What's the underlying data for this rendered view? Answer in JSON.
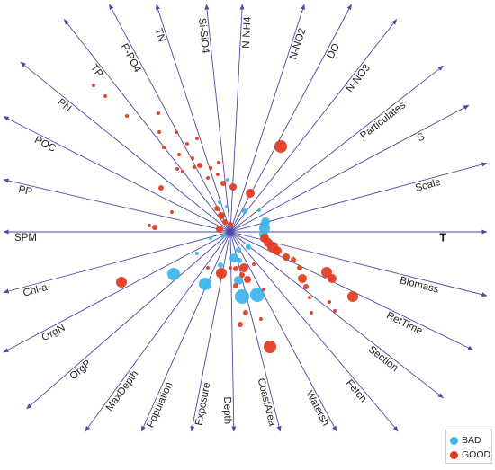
{
  "chart_data": {
    "type": "scatter",
    "variant": "biplot-vectors",
    "title": "",
    "grid": false,
    "legend_placement": "bottom-right",
    "colors": {
      "axis": "#4a4aa8",
      "BAD": "#3fb6ea",
      "GOOD": "#e23d22"
    },
    "axes": [
      {
        "label": "T",
        "angle": 0,
        "bold": true
      },
      {
        "label": "Scale",
        "angle": 15
      },
      {
        "label": "S",
        "angle": 28
      },
      {
        "label": "Particulates",
        "angle": 38
      },
      {
        "label": "N-NO3",
        "angle": 52
      },
      {
        "label": "DO",
        "angle": 62
      },
      {
        "label": "N-NO2",
        "angle": 72
      },
      {
        "label": "N-NH4",
        "angle": 87
      },
      {
        "label": "Si-SiO4",
        "angle": 96
      },
      {
        "label": "TN",
        "angle": 108
      },
      {
        "label": "P-PO4",
        "angle": 118
      },
      {
        "label": "TP",
        "angle": 128
      },
      {
        "label": "PN",
        "angle": 141
      },
      {
        "label": "POC",
        "angle": 153
      },
      {
        "label": "PP",
        "angle": 167
      },
      {
        "label": "SPM",
        "angle": 180
      },
      {
        "label": "Chl-a",
        "angle": 195
      },
      {
        "label": "OrgN",
        "angle": 208
      },
      {
        "label": "OrgP",
        "angle": 221
      },
      {
        "label": "MaxDepth",
        "angle": 234
      },
      {
        "label": "Population",
        "angle": 246
      },
      {
        "label": "Exposure",
        "angle": 259
      },
      {
        "label": "Depth",
        "angle": 271
      },
      {
        "label": "CoastArea",
        "angle": 284
      },
      {
        "label": "Watersh",
        "angle": 298
      },
      {
        "label": "Fetch",
        "angle": 310
      },
      {
        "label": "Section",
        "angle": 322
      },
      {
        "label": "RetTime",
        "angle": 334
      },
      {
        "label": "Biomass",
        "angle": 346
      }
    ],
    "series": [
      {
        "name": "BAD",
        "points": [
          {
            "x": -3,
            "y": 58,
            "s": 2
          },
          {
            "x": -12,
            "y": 33,
            "s": 2
          },
          {
            "x": -4,
            "y": 28,
            "s": 2
          },
          {
            "x": 16,
            "y": 23,
            "s": 3
          },
          {
            "x": 32,
            "y": 24,
            "s": 2
          },
          {
            "x": 39,
            "y": 11,
            "s": 5
          },
          {
            "x": 38,
            "y": 4,
            "s": 6
          },
          {
            "x": 37,
            "y": -3,
            "s": 5
          },
          {
            "x": -8,
            "y": -5,
            "s": 2
          },
          {
            "x": -22,
            "y": -7,
            "s": 2
          },
          {
            "x": -37,
            "y": -24,
            "s": 2
          },
          {
            "x": 9,
            "y": -20,
            "s": 3
          },
          {
            "x": 20,
            "y": -17,
            "s": 3
          },
          {
            "x": 4,
            "y": -29,
            "s": 5
          },
          {
            "x": 10,
            "y": -32,
            "s": 3
          },
          {
            "x": -11,
            "y": -37,
            "s": 3
          },
          {
            "x": -63,
            "y": -47,
            "s": 7
          },
          {
            "x": -28,
            "y": -58,
            "s": 7
          },
          {
            "x": 9,
            "y": -54,
            "s": 5
          },
          {
            "x": 13,
            "y": -72,
            "s": 8
          },
          {
            "x": 30,
            "y": -70,
            "s": 8
          }
        ]
      },
      {
        "name": "GOOD",
        "points": [
          {
            "x": -152,
            "y": 163,
            "s": 2
          },
          {
            "x": -139,
            "y": 151,
            "s": 2
          },
          {
            "x": -115,
            "y": 129,
            "s": 2
          },
          {
            "x": -80,
            "y": 132,
            "s": 2
          },
          {
            "x": -79,
            "y": 111,
            "s": 2
          },
          {
            "x": -60,
            "y": 111,
            "s": 2
          },
          {
            "x": -74,
            "y": 94,
            "s": 2
          },
          {
            "x": -48,
            "y": 98,
            "s": 2
          },
          {
            "x": -37,
            "y": 104,
            "s": 2
          },
          {
            "x": -57,
            "y": 86,
            "s": 2
          },
          {
            "x": -42,
            "y": 82,
            "s": 2
          },
          {
            "x": -40,
            "y": 72,
            "s": 2
          },
          {
            "x": -34,
            "y": 74,
            "s": 3
          },
          {
            "x": -53,
            "y": 67,
            "s": 2
          },
          {
            "x": -59,
            "y": 70,
            "s": 2
          },
          {
            "x": -13,
            "y": 77,
            "s": 2
          },
          {
            "x": -22,
            "y": 71,
            "s": 2
          },
          {
            "x": -14,
            "y": 64,
            "s": 2
          },
          {
            "x": -25,
            "y": 60,
            "s": 2
          },
          {
            "x": -8,
            "y": 54,
            "s": 3
          },
          {
            "x": 3,
            "y": 50,
            "s": 4
          },
          {
            "x": 22,
            "y": 43,
            "s": 5
          },
          {
            "x": 56,
            "y": 95,
            "s": 7
          },
          {
            "x": -77,
            "y": 49,
            "s": 3
          },
          {
            "x": -65,
            "y": 22,
            "s": 2
          },
          {
            "x": -15,
            "y": 26,
            "s": 3
          },
          {
            "x": -10,
            "y": 18,
            "s": 4
          },
          {
            "x": -6,
            "y": 11,
            "s": 3
          },
          {
            "x": 0,
            "y": 8,
            "s": 3
          },
          {
            "x": -12,
            "y": 3,
            "s": 4
          },
          {
            "x": -84,
            "y": 5,
            "s": 3
          },
          {
            "x": -90,
            "y": 7,
            "s": 2
          },
          {
            "x": 38,
            "y": -7,
            "s": 5
          },
          {
            "x": 42,
            "y": -12,
            "s": 5
          },
          {
            "x": 47,
            "y": -17,
            "s": 6
          },
          {
            "x": 52,
            "y": -21,
            "s": 5
          },
          {
            "x": 62,
            "y": -28,
            "s": 4
          },
          {
            "x": 70,
            "y": -31,
            "s": 3
          },
          {
            "x": 77,
            "y": -40,
            "s": 3
          },
          {
            "x": 107,
            "y": -45,
            "s": 6
          },
          {
            "x": 113,
            "y": -52,
            "s": 5
          },
          {
            "x": 80,
            "y": -52,
            "s": 5
          },
          {
            "x": 84,
            "y": -61,
            "s": 3
          },
          {
            "x": 136,
            "y": -72,
            "s": 6
          },
          {
            "x": 15,
            "y": -40,
            "s": 5
          },
          {
            "x": 6,
            "y": -41,
            "s": 3
          },
          {
            "x": -10,
            "y": -46,
            "s": 6
          },
          {
            "x": -25,
            "y": -40,
            "s": 2
          },
          {
            "x": 0,
            "y": -40,
            "s": 2
          },
          {
            "x": 13,
            "y": -48,
            "s": 3
          },
          {
            "x": 19,
            "y": -53,
            "s": 4
          },
          {
            "x": 6,
            "y": -60,
            "s": 3
          },
          {
            "x": 26,
            "y": -36,
            "s": 2
          },
          {
            "x": 37,
            "y": -64,
            "s": 2
          },
          {
            "x": 11,
            "y": -103,
            "s": 3
          },
          {
            "x": 17,
            "y": -90,
            "s": 3
          },
          {
            "x": 34,
            "y": -97,
            "s": 2
          },
          {
            "x": 44,
            "y": -128,
            "s": 7
          },
          {
            "x": 90,
            "y": -90,
            "s": 2
          },
          {
            "x": 110,
            "y": -78,
            "s": 2
          },
          {
            "x": 116,
            "y": -88,
            "s": 2
          },
          {
            "x": 88,
            "y": -73,
            "s": 2
          },
          {
            "x": -121,
            "y": -56,
            "s": 6
          }
        ]
      }
    ]
  },
  "legend": {
    "items": [
      {
        "label": "BAD",
        "color": "#3fb6ea"
      },
      {
        "label": "GOOD",
        "color": "#e23d22"
      }
    ]
  }
}
